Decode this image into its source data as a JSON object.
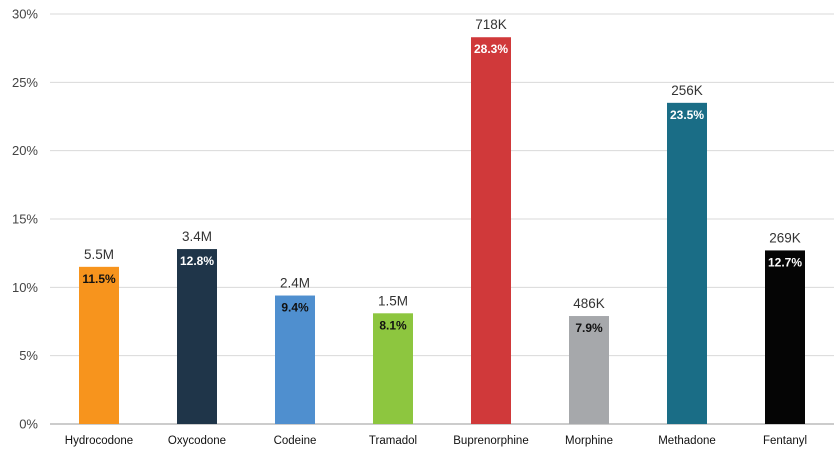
{
  "chart_data": {
    "type": "bar",
    "categories": [
      "Hydrocodone",
      "Oxycodone",
      "Codeine",
      "Tramadol",
      "Buprenorphine",
      "Morphine",
      "Methadone",
      "Fentanyl"
    ],
    "values": [
      11.5,
      12.8,
      9.4,
      8.1,
      28.3,
      7.9,
      23.5,
      12.7
    ],
    "value_labels": [
      "11.5%",
      "12.8%",
      "9.4%",
      "8.1%",
      "28.3%",
      "7.9%",
      "23.5%",
      "12.7%"
    ],
    "top_labels": [
      "5.5M",
      "3.4M",
      "2.4M",
      "1.5M",
      "718K",
      "486K",
      "256K",
      "269K"
    ],
    "colors": [
      "#f7941d",
      "#1f3549",
      "#4f8fcf",
      "#8dc63f",
      "#d0393a",
      "#a6a8ab",
      "#1a6d86",
      "#050505"
    ],
    "label_colors": [
      "#111111",
      "#ffffff",
      "#111111",
      "#111111",
      "#ffffff",
      "#111111",
      "#ffffff",
      "#ffffff"
    ],
    "y_ticks": [
      "0%",
      "5%",
      "10%",
      "15%",
      "20%",
      "25%",
      "30%"
    ],
    "ylim": [
      0,
      30
    ],
    "grid": true,
    "title": "",
    "xlabel": "",
    "ylabel": ""
  }
}
